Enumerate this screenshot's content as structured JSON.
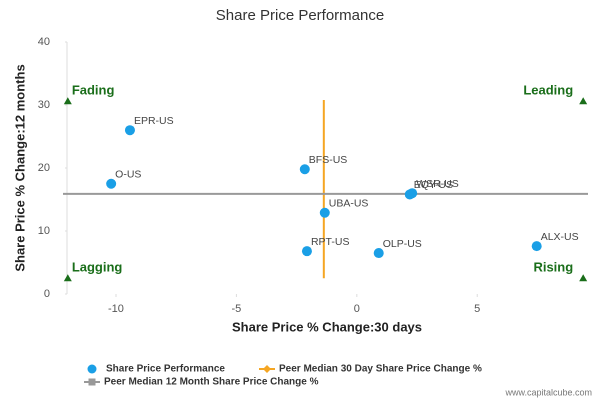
{
  "chart_data": {
    "type": "scatter",
    "title": "Share Price Performance",
    "x_label": "Share Price % Change:30 days",
    "y_label": "Share Price % Change:12 months",
    "xlim": [
      -12.2,
      9.6
    ],
    "ylim": [
      0,
      40
    ],
    "xticks": [
      -10,
      -5,
      0,
      5
    ],
    "yticks": [
      0,
      10,
      20,
      30,
      40
    ],
    "series": [
      {
        "name": "Share Price Performance",
        "color": "#1a9fe6",
        "style": "points",
        "labels": [
          "EPR-US",
          "O-US",
          "BFS-US",
          "WSR-US",
          "EQY-US",
          "UBA-US",
          "RPT-US",
          "OLP-US",
          "ALX-US"
        ],
        "x": [
          -9.42,
          -10.2,
          -2.16,
          2.3,
          2.2,
          -1.33,
          -2.07,
          0.91,
          7.47
        ],
        "values": [
          26.0,
          17.5,
          19.8,
          16.0,
          15.8,
          12.9,
          6.8,
          6.5,
          7.6
        ]
      },
      {
        "name": "Peer Median 30 Day Share Price Change %",
        "color": "#f5a623",
        "style": "line",
        "x": [
          -1.37,
          -1.37
        ],
        "values": [
          2.5,
          30.8
        ]
      },
      {
        "name": "Peer Median 12 Month Share Price Change %",
        "color": "#999999",
        "style": "line",
        "x": [
          -12.2,
          9.6
        ],
        "values": [
          15.9,
          15.9
        ]
      }
    ],
    "annotations": [
      {
        "text": "Fading",
        "x": -12.0,
        "y": 30.6,
        "align": "start"
      },
      {
        "text": "Leading",
        "x": 9.4,
        "y": 30.6,
        "align": "end"
      },
      {
        "text": "Lagging",
        "x": -12.0,
        "y": 2.5,
        "align": "start"
      },
      {
        "text": "Rising",
        "x": 9.4,
        "y": 2.5,
        "align": "end"
      }
    ],
    "source": "www.capitalcube.com"
  }
}
